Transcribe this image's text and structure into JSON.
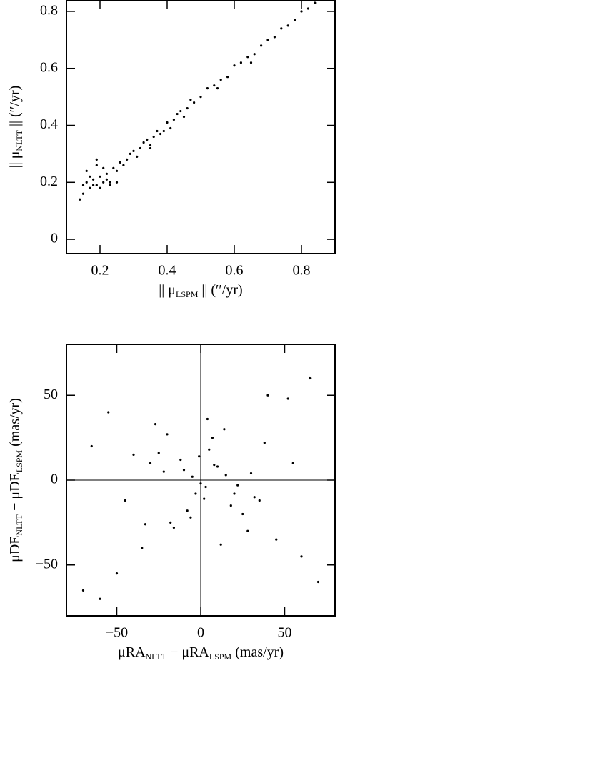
{
  "chart_data": [
    {
      "type": "scatter",
      "color": "#000000",
      "xlabel": [
        "|| μ",
        "LSPM",
        " || (′′/yr)"
      ],
      "ylabel": [
        "|| μ",
        "NLTT",
        " || (′′/yr)"
      ],
      "xlim": [
        0.1,
        0.9
      ],
      "ylim": [
        -0.05,
        0.84
      ],
      "xticks": [
        0.2,
        0.4,
        0.6,
        0.8
      ],
      "yticks": [
        0,
        0.2,
        0.4,
        0.6,
        0.8
      ],
      "x": [
        0.15,
        0.16,
        0.17,
        0.18,
        0.19,
        0.2,
        0.21,
        0.22,
        0.16,
        0.18,
        0.2,
        0.22,
        0.24,
        0.25,
        0.26,
        0.28,
        0.3,
        0.32,
        0.34,
        0.36,
        0.38,
        0.4,
        0.42,
        0.44,
        0.46,
        0.48,
        0.5,
        0.52,
        0.54,
        0.56,
        0.58,
        0.6,
        0.62,
        0.64,
        0.66,
        0.68,
        0.7,
        0.72,
        0.74,
        0.76,
        0.78,
        0.8,
        0.82,
        0.84,
        0.86,
        0.15,
        0.17,
        0.19,
        0.21,
        0.23,
        0.27,
        0.29,
        0.31,
        0.33,
        0.35,
        0.37,
        0.39,
        0.41,
        0.43,
        0.45,
        0.47,
        0.14,
        0.19,
        0.23,
        0.25,
        0.55,
        0.65,
        0.35
      ],
      "y": [
        0.19,
        0.2,
        0.18,
        0.21,
        0.19,
        0.22,
        0.2,
        0.23,
        0.24,
        0.19,
        0.18,
        0.21,
        0.25,
        0.24,
        0.27,
        0.28,
        0.31,
        0.32,
        0.35,
        0.36,
        0.37,
        0.41,
        0.42,
        0.45,
        0.46,
        0.48,
        0.5,
        0.53,
        0.54,
        0.56,
        0.57,
        0.61,
        0.62,
        0.64,
        0.65,
        0.68,
        0.7,
        0.71,
        0.74,
        0.75,
        0.77,
        0.8,
        0.81,
        0.83,
        0.84,
        0.16,
        0.22,
        0.26,
        0.25,
        0.2,
        0.26,
        0.3,
        0.29,
        0.34,
        0.33,
        0.38,
        0.38,
        0.39,
        0.44,
        0.43,
        0.49,
        0.14,
        0.28,
        0.19,
        0.2,
        0.53,
        0.62,
        0.32
      ]
    },
    {
      "type": "scatter",
      "color": "#000000",
      "zero_lines": true,
      "xlabel": [
        "μRA",
        "NLTT",
        " − μRA",
        "LSPM",
        " (mas/yr)"
      ],
      "ylabel": [
        "μDE",
        "NLTT",
        " − μDE",
        "LSPM",
        " (mas/yr)"
      ],
      "xlim": [
        -80,
        80
      ],
      "ylim": [
        -80,
        80
      ],
      "xticks": [
        {
          "value": -50,
          "label": "−50"
        },
        0,
        50
      ],
      "yticks": [
        {
          "value": -50,
          "label": "−50"
        },
        0,
        50
      ],
      "x": [
        -5,
        3,
        10,
        -12,
        18,
        -22,
        25,
        -30,
        0,
        7,
        -8,
        14,
        -16,
        32,
        -40,
        45,
        -55,
        60,
        -65,
        70,
        -3,
        5,
        -18,
        22,
        -27,
        38,
        -45,
        52,
        12,
        -10,
        2,
        -1,
        8,
        -6,
        15,
        -20,
        28,
        -35,
        40,
        -50,
        65,
        -70,
        20,
        -25,
        30,
        35,
        -33,
        55,
        -60,
        4
      ],
      "y": [
        2,
        -4,
        8,
        12,
        -15,
        5,
        -20,
        10,
        -2,
        25,
        -18,
        30,
        -28,
        -10,
        15,
        -35,
        40,
        -45,
        20,
        -60,
        -8,
        18,
        -25,
        -3,
        33,
        22,
        -12,
        48,
        -38,
        6,
        -11,
        14,
        9,
        -22,
        3,
        27,
        -30,
        -40,
        50,
        -55,
        60,
        -65,
        -8,
        16,
        4,
        -12,
        -26,
        10,
        -70,
        36
      ]
    }
  ]
}
